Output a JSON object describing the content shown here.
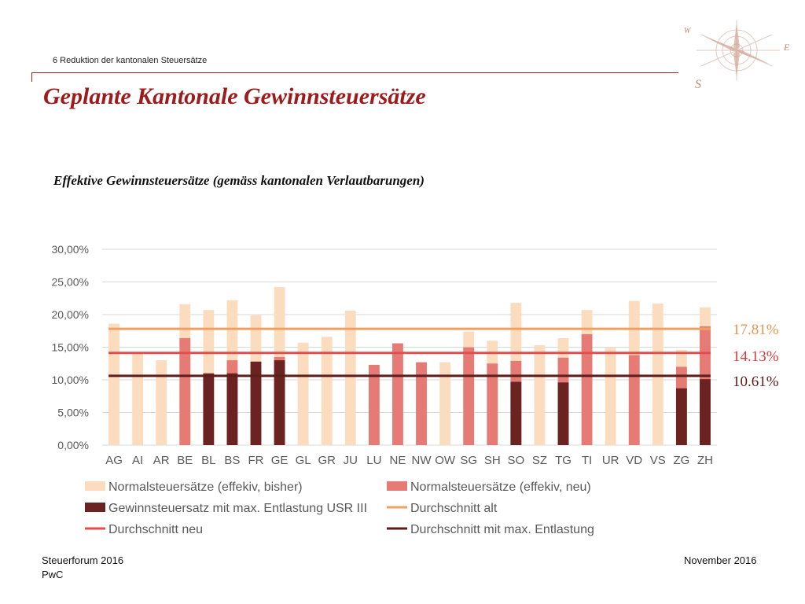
{
  "header": {
    "section": "6 Reduktion der kantonalen Steuersätze",
    "title": "Geplante Kantonale Gewinnsteuersätze",
    "subtitle": "Effektive Gewinnsteuersätze (gemäss kantonalen Verlautbarungen)"
  },
  "logo": {
    "icon": "compass-rose-icon",
    "letters": {
      "w": "W",
      "e": "E",
      "s": "S"
    }
  },
  "colors": {
    "bisher": "#fcdcbe",
    "neu": "#e67b76",
    "usr": "#6b2321",
    "avg_alt": "#f0a062",
    "avg_neu": "#e04e4e",
    "avg_max": "#5c1d1b",
    "title": "#9e1b1b",
    "grid": "#d9d9d9"
  },
  "chart_data": {
    "type": "bar",
    "categories": [
      "AG",
      "AI",
      "AR",
      "BE",
      "BL",
      "BS",
      "FR",
      "GE",
      "GL",
      "GR",
      "JU",
      "LU",
      "NE",
      "NW",
      "OW",
      "SG",
      "SH",
      "SO",
      "SZ",
      "TG",
      "TI",
      "UR",
      "VD",
      "VS",
      "ZG",
      "ZH"
    ],
    "ylim": [
      0,
      30
    ],
    "yticks": [
      0,
      5,
      10,
      15,
      20,
      25,
      30
    ],
    "ytick_labels": [
      "0,00%",
      "5,00%",
      "10,00%",
      "15,00%",
      "20,00%",
      "25,00%",
      "30,00%"
    ],
    "grid": true,
    "legend_position": "bottom",
    "series": [
      {
        "name": "Normalsteuersätze (effekiv, bisher)",
        "kind": "bar",
        "values": [
          18.6,
          14.2,
          13.0,
          21.6,
          20.7,
          22.2,
          19.9,
          24.2,
          15.7,
          16.6,
          20.6,
          12.3,
          15.6,
          12.7,
          12.7,
          17.4,
          16.0,
          21.8,
          15.3,
          16.4,
          20.7,
          14.9,
          22.1,
          21.7,
          14.6,
          21.1
        ]
      },
      {
        "name": "Normalsteuersätze (effekiv, neu)",
        "kind": "bar",
        "values": [
          null,
          null,
          null,
          16.4,
          null,
          13.0,
          null,
          13.5,
          null,
          null,
          null,
          12.3,
          15.6,
          12.7,
          null,
          15.0,
          12.5,
          12.9,
          null,
          13.4,
          17.0,
          null,
          13.8,
          null,
          12.0,
          18.2
        ]
      },
      {
        "name": "Gewinnsteuersatz mit max. Entlastung USR III",
        "kind": "bar",
        "values": [
          null,
          null,
          null,
          null,
          11.0,
          11.0,
          12.8,
          13.0,
          null,
          null,
          null,
          null,
          null,
          null,
          null,
          null,
          null,
          9.7,
          null,
          9.6,
          null,
          null,
          null,
          null,
          8.7,
          10.1
        ]
      },
      {
        "name": "Durchschnitt alt",
        "kind": "line",
        "value": 17.81
      },
      {
        "name": "Durchschnitt neu",
        "kind": "line",
        "value": 14.13
      },
      {
        "name": "Durchschnitt mit max. Entlastung",
        "kind": "line",
        "value": 10.61
      }
    ],
    "annotations": {
      "avg_alt": "17.81%",
      "avg_neu": "14.13%",
      "avg_max": "10.61%"
    }
  },
  "footer": {
    "left_line1": "Steuerforum 2016",
    "left_line2": "PwC",
    "right": "November 2016"
  }
}
